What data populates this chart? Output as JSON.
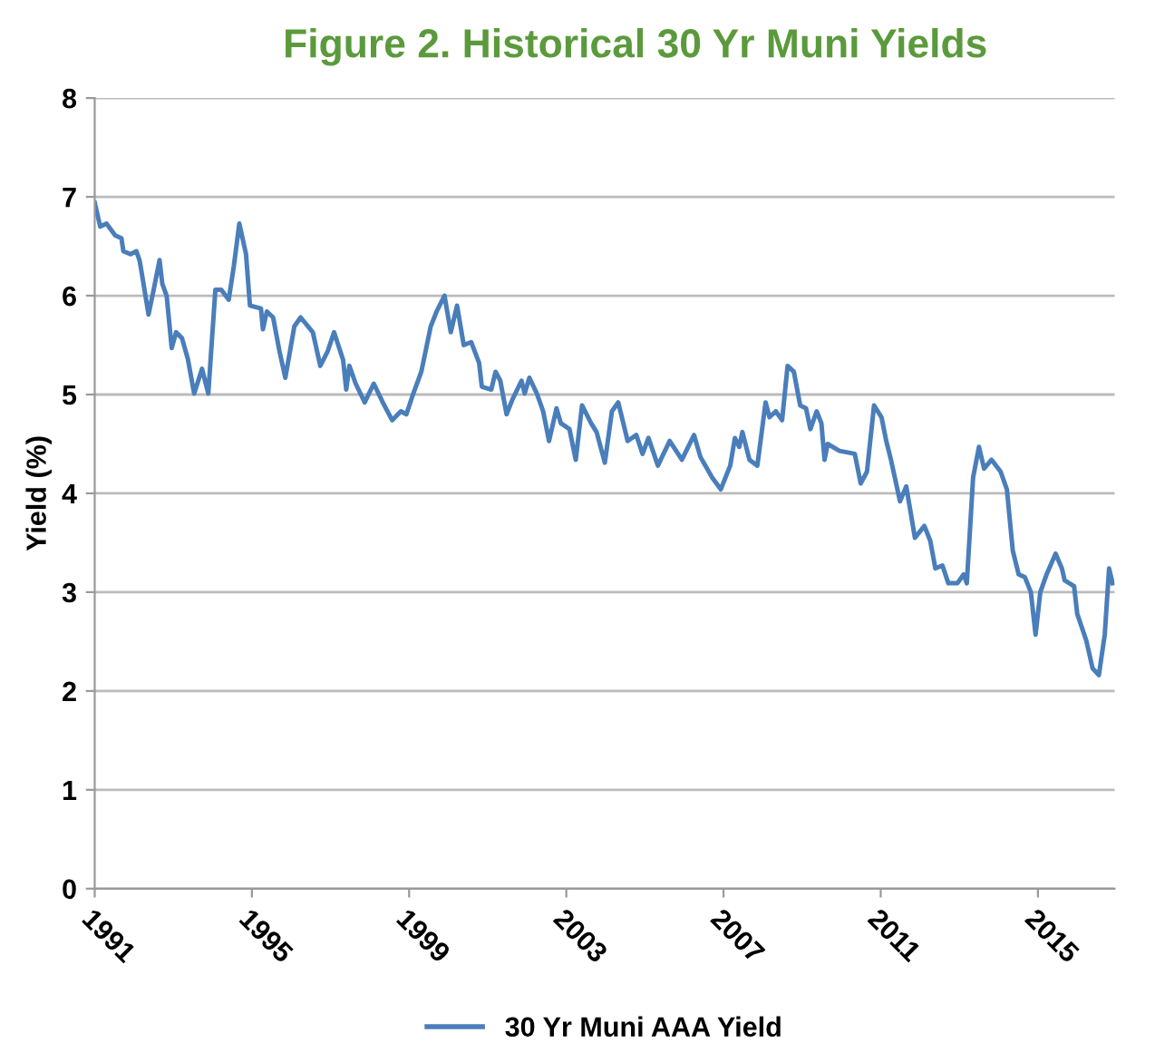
{
  "chart_data": {
    "type": "line",
    "title": "Figure 2. Historical 30 Yr Muni Yields",
    "ylabel": "Yield (%)",
    "xlim": [
      1991,
      2016.95
    ],
    "xticks": [
      1991,
      1995,
      1999,
      2003,
      2007,
      2011,
      2015
    ],
    "ylim": [
      0,
      8
    ],
    "yticks": [
      0,
      1,
      2,
      3,
      4,
      5,
      6,
      7,
      8
    ],
    "grid": "y",
    "legend": "bottom",
    "marker": "none",
    "line_style": "solid",
    "series": [
      {
        "name": "30 Yr Muni AAA Yield",
        "color": "#4a7ebb",
        "x": [
          1991.0,
          1991.14,
          1991.3,
          1991.52,
          1991.68,
          1991.73,
          1991.91,
          1992.06,
          1992.14,
          1992.18,
          1992.37,
          1992.5,
          1992.65,
          1992.72,
          1992.83,
          1992.96,
          1993.07,
          1993.22,
          1993.37,
          1993.53,
          1993.73,
          1993.89,
          1994.07,
          1994.22,
          1994.41,
          1994.54,
          1994.68,
          1994.85,
          1994.95,
          1995.23,
          1995.28,
          1995.38,
          1995.54,
          1995.7,
          1995.85,
          1996.08,
          1996.24,
          1996.55,
          1996.74,
          1996.93,
          1997.09,
          1997.32,
          1997.4,
          1997.48,
          1997.64,
          1997.87,
          1998.1,
          1998.33,
          1998.57,
          1998.79,
          1998.93,
          1999.08,
          1999.31,
          1999.55,
          1999.7,
          1999.9,
          2000.06,
          2000.22,
          2000.39,
          2000.58,
          2000.78,
          2000.85,
          2001.09,
          2001.2,
          2001.32,
          2001.48,
          2001.63,
          2001.86,
          2001.94,
          2002.06,
          2002.25,
          2002.41,
          2002.56,
          2002.75,
          2002.86,
          2003.08,
          2003.24,
          2003.4,
          2003.63,
          2003.77,
          2003.98,
          2004.16,
          2004.32,
          2004.56,
          2004.78,
          2004.94,
          2005.09,
          2005.33,
          2005.63,
          2005.94,
          2006.25,
          2006.41,
          2006.71,
          2006.93,
          2007.17,
          2007.29,
          2007.4,
          2007.48,
          2007.66,
          2007.86,
          2008.07,
          2008.17,
          2008.33,
          2008.49,
          2008.63,
          2008.79,
          2008.95,
          2009.1,
          2009.21,
          2009.37,
          2009.49,
          2009.57,
          2009.65,
          2009.95,
          2010.34,
          2010.49,
          2010.65,
          2010.83,
          2011.02,
          2011.14,
          2011.26,
          2011.49,
          2011.65,
          2011.87,
          2012.11,
          2012.26,
          2012.39,
          2012.57,
          2012.72,
          2012.95,
          2013.11,
          2013.19,
          2013.35,
          2013.5,
          2013.63,
          2013.82,
          2014.05,
          2014.21,
          2014.36,
          2014.51,
          2014.67,
          2014.82,
          2014.94,
          2015.06,
          2015.22,
          2015.45,
          2015.61,
          2015.68,
          2015.92,
          2016.0,
          2016.23,
          2016.39,
          2016.55,
          2016.7,
          2016.81,
          2016.9
        ],
        "values": [
          6.94,
          6.7,
          6.73,
          6.61,
          6.58,
          6.45,
          6.42,
          6.45,
          6.36,
          6.27,
          5.81,
          6.06,
          6.36,
          6.12,
          6.0,
          5.47,
          5.63,
          5.57,
          5.36,
          5.01,
          5.26,
          5.01,
          6.06,
          6.06,
          5.96,
          6.3,
          6.73,
          6.42,
          5.9,
          5.87,
          5.66,
          5.84,
          5.78,
          5.44,
          5.17,
          5.69,
          5.78,
          5.63,
          5.29,
          5.44,
          5.63,
          5.35,
          5.05,
          5.29,
          5.11,
          4.92,
          5.11,
          4.92,
          4.74,
          4.83,
          4.8,
          4.98,
          5.23,
          5.69,
          5.84,
          6.0,
          5.63,
          5.9,
          5.5,
          5.53,
          5.32,
          5.08,
          5.05,
          5.23,
          5.14,
          4.8,
          4.95,
          5.14,
          5.01,
          5.17,
          5.01,
          4.83,
          4.53,
          4.86,
          4.71,
          4.65,
          4.34,
          4.89,
          4.71,
          4.62,
          4.31,
          4.83,
          4.92,
          4.53,
          4.59,
          4.4,
          4.56,
          4.28,
          4.53,
          4.34,
          4.59,
          4.37,
          4.16,
          4.04,
          4.28,
          4.56,
          4.47,
          4.62,
          4.34,
          4.28,
          4.92,
          4.77,
          4.83,
          4.74,
          5.29,
          5.23,
          4.89,
          4.86,
          4.65,
          4.83,
          4.71,
          4.34,
          4.5,
          4.43,
          4.4,
          4.1,
          4.22,
          4.89,
          4.77,
          4.53,
          4.34,
          3.92,
          4.07,
          3.55,
          3.67,
          3.52,
          3.24,
          3.27,
          3.09,
          3.09,
          3.18,
          3.09,
          4.16,
          4.47,
          4.25,
          4.34,
          4.22,
          4.04,
          3.42,
          3.18,
          3.15,
          3.0,
          2.57,
          3.0,
          3.18,
          3.39,
          3.24,
          3.12,
          3.06,
          2.78,
          2.51,
          2.23,
          2.16,
          2.57,
          3.24,
          3.09
        ]
      }
    ]
  }
}
